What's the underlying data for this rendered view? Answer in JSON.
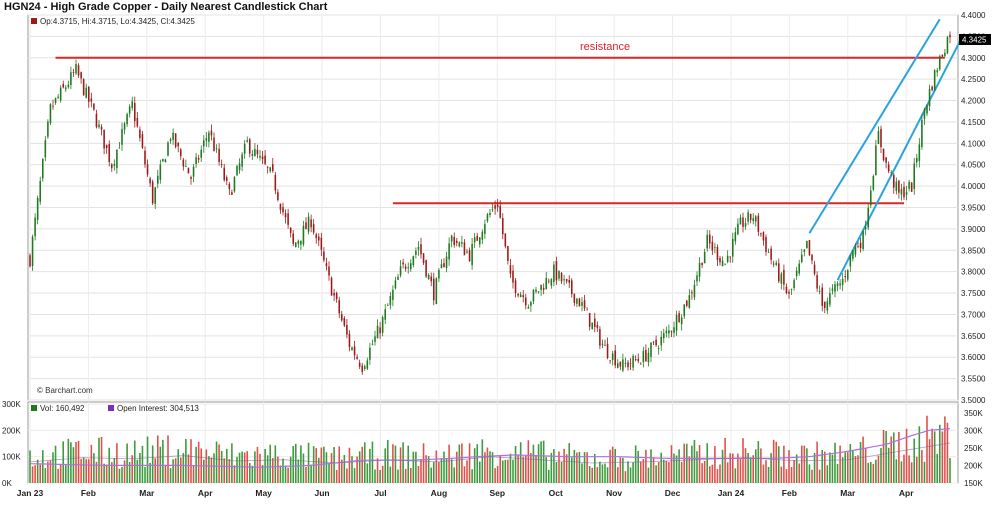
{
  "chart_data": {
    "type": "candlestick",
    "title": "HGN24 - High Grade Copper - Daily Nearest Candlestick Chart",
    "ohlc_label": "Op:4.3715, Hi:4.3715, Lo:4.3425, Cl:4.3425",
    "last_price_label": "4.3425",
    "watermark": "© Barchart.com",
    "annotation": "resistance",
    "price_axis": {
      "ylim": [
        3.5,
        4.4
      ],
      "ticks": [
        "4.4000",
        "4.3500",
        "4.3000",
        "4.2500",
        "4.2000",
        "4.1500",
        "4.1000",
        "4.0500",
        "4.0000",
        "3.9500",
        "3.9000",
        "3.8500",
        "3.8000",
        "3.7500",
        "3.7000",
        "3.6500",
        "3.6000",
        "3.5500",
        "3.5000"
      ]
    },
    "x_labels": [
      "Jan 23",
      "Feb",
      "Mar",
      "Apr",
      "May",
      "Jun",
      "Jul",
      "Aug",
      "Sep",
      "Oct",
      "Nov",
      "Dec",
      "Jan 24",
      "Feb",
      "Mar",
      "Apr"
    ],
    "price_path": [
      [
        0,
        3.83
      ],
      [
        8,
        4.18
      ],
      [
        18,
        4.27
      ],
      [
        25,
        4.17
      ],
      [
        32,
        4.05
      ],
      [
        40,
        4.19
      ],
      [
        48,
        3.97
      ],
      [
        55,
        4.12
      ],
      [
        63,
        4.02
      ],
      [
        70,
        4.13
      ],
      [
        78,
        3.98
      ],
      [
        85,
        4.1
      ],
      [
        95,
        4.02
      ],
      [
        103,
        3.86
      ],
      [
        110,
        3.92
      ],
      [
        118,
        3.76
      ],
      [
        125,
        3.63
      ],
      [
        130,
        3.58
      ],
      [
        137,
        3.67
      ],
      [
        145,
        3.8
      ],
      [
        152,
        3.86
      ],
      [
        158,
        3.75
      ],
      [
        165,
        3.88
      ],
      [
        172,
        3.84
      ],
      [
        178,
        3.92
      ],
      [
        183,
        3.96
      ],
      [
        188,
        3.78
      ],
      [
        195,
        3.73
      ],
      [
        205,
        3.8
      ],
      [
        215,
        3.73
      ],
      [
        225,
        3.62
      ],
      [
        232,
        3.58
      ],
      [
        240,
        3.6
      ],
      [
        250,
        3.66
      ],
      [
        258,
        3.74
      ],
      [
        265,
        3.87
      ],
      [
        272,
        3.82
      ],
      [
        278,
        3.91
      ],
      [
        283,
        3.93
      ],
      [
        290,
        3.83
      ],
      [
        297,
        3.74
      ],
      [
        304,
        3.86
      ],
      [
        310,
        3.72
      ],
      [
        314,
        3.75
      ],
      [
        318,
        3.78
      ],
      [
        322,
        3.85
      ],
      [
        326,
        3.88
      ],
      [
        332,
        4.12
      ],
      [
        335,
        4.05
      ],
      [
        340,
        3.98
      ],
      [
        345,
        4.0
      ],
      [
        350,
        4.18
      ],
      [
        355,
        4.28
      ],
      [
        360,
        4.36
      ]
    ],
    "volume_axis": {
      "ylim": [
        0,
        300000
      ],
      "ticks": [
        "300K",
        "200K",
        "100K",
        "0K"
      ]
    },
    "open_interest_axis": {
      "ylim": [
        150000,
        375000
      ],
      "ticks": [
        "350K",
        "300K",
        "250K",
        "200K",
        "150K"
      ]
    },
    "volume_legend": {
      "label": "Vol: 160,492",
      "color": "#1f7a1f"
    },
    "open_interest_legend": {
      "label": "Open Interest: 304,513",
      "color": "#7b2fbf"
    },
    "volume_path": [
      [
        0,
        100000
      ],
      [
        20,
        120000
      ],
      [
        40,
        115000
      ],
      [
        60,
        130000
      ],
      [
        80,
        105000
      ],
      [
        100,
        110000
      ],
      [
        120,
        95000
      ],
      [
        140,
        110000
      ],
      [
        160,
        100000
      ],
      [
        180,
        125000
      ],
      [
        200,
        110000
      ],
      [
        220,
        95000
      ],
      [
        240,
        100000
      ],
      [
        260,
        110000
      ],
      [
        280,
        120000
      ],
      [
        300,
        105000
      ],
      [
        320,
        110000
      ],
      [
        340,
        150000
      ],
      [
        360,
        190000
      ]
    ],
    "open_interest_path": [
      [
        0,
        205000
      ],
      [
        30,
        200000
      ],
      [
        60,
        200000
      ],
      [
        90,
        195000
      ],
      [
        110,
        200000
      ],
      [
        130,
        215000
      ],
      [
        150,
        215000
      ],
      [
        165,
        220000
      ],
      [
        175,
        225000
      ],
      [
        190,
        230000
      ],
      [
        210,
        225000
      ],
      [
        230,
        225000
      ],
      [
        250,
        220000
      ],
      [
        270,
        220000
      ],
      [
        290,
        220000
      ],
      [
        305,
        225000
      ],
      [
        320,
        240000
      ],
      [
        335,
        260000
      ],
      [
        345,
        285000
      ],
      [
        352,
        300000
      ],
      [
        360,
        305000
      ]
    ],
    "reference_lines": [
      {
        "name": "resistance-high",
        "from": [
          10,
          4.3
        ],
        "to": [
          358,
          4.3
        ],
        "color": "#d9262b"
      },
      {
        "name": "resistance-mid",
        "from": [
          142,
          3.96
        ],
        "to": [
          342,
          3.96
        ],
        "color": "#d9262b"
      },
      {
        "name": "channel-upper",
        "from": [
          305,
          3.89
        ],
        "to": [
          356,
          4.39
        ],
        "color": "#2aa4e0"
      },
      {
        "name": "channel-lower",
        "from": [
          316,
          3.78
        ],
        "to": [
          364,
          4.34
        ],
        "color": "#2aa4e0"
      }
    ],
    "colors": {
      "up": "#1f7a1f",
      "down": "#9e1b1b",
      "volume_up": "#3c9b3c",
      "volume_down": "#e0504a"
    }
  }
}
